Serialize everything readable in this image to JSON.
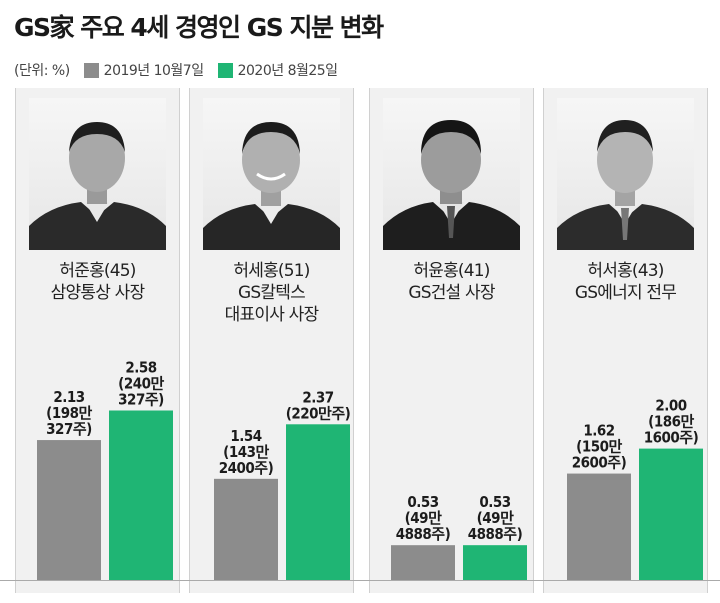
{
  "title": "GS家 주요 4세 경영인 GS 지분 변화",
  "legend": {
    "unit": "(단위: %)",
    "series1": "2019년 10월7일",
    "series2": "2020년 8월25일"
  },
  "colors": {
    "series1": "#8c8c8c",
    "series2": "#1fb574",
    "panel": "#f1f1f1"
  },
  "people": [
    {
      "name": "허준홍(45)",
      "role1": "삼양통상 사장",
      "role2": "",
      "photo_icon": "portrait-photo"
    },
    {
      "name": "허세홍(51)",
      "role1": "GS칼텍스",
      "role2": "대표이사 사장",
      "photo_icon": "portrait-photo"
    },
    {
      "name": "허윤홍(41)",
      "role1": "GS건설 사장",
      "role2": "",
      "photo_icon": "portrait-photo"
    },
    {
      "name": "허서홍(43)",
      "role1": "GS에너지 전무",
      "role2": "",
      "photo_icon": "portrait-photo"
    }
  ],
  "chart_data": {
    "type": "bar",
    "title": "GS家 주요 4세 경영인 GS 지분 변화",
    "unit": "%",
    "categories": [
      "허준홍(45)",
      "허세홍(51)",
      "허윤홍(41)",
      "허서홍(43)"
    ],
    "ylim": [
      0,
      3
    ],
    "grid": false,
    "legend_position": "top-left",
    "series": [
      {
        "name": "2019년 10월7일",
        "values": [
          2.13,
          1.54,
          0.53,
          1.62
        ],
        "labels": [
          [
            "2.13",
            "(198만",
            "327주)"
          ],
          [
            "1.54",
            "(143만",
            "2400주)"
          ],
          [
            "0.53",
            "(49만",
            "4888주)"
          ],
          [
            "1.62",
            "(150만",
            "2600주)"
          ]
        ]
      },
      {
        "name": "2020년 8월25일",
        "values": [
          2.58,
          2.37,
          0.53,
          2.0
        ],
        "labels": [
          [
            "2.58",
            "(240만",
            "327주)"
          ],
          [
            "2.37",
            "(220만주)"
          ],
          [
            "0.53",
            "(49만",
            "4888주)"
          ],
          [
            "2.00",
            "(186만",
            "1600주)"
          ]
        ]
      }
    ]
  }
}
